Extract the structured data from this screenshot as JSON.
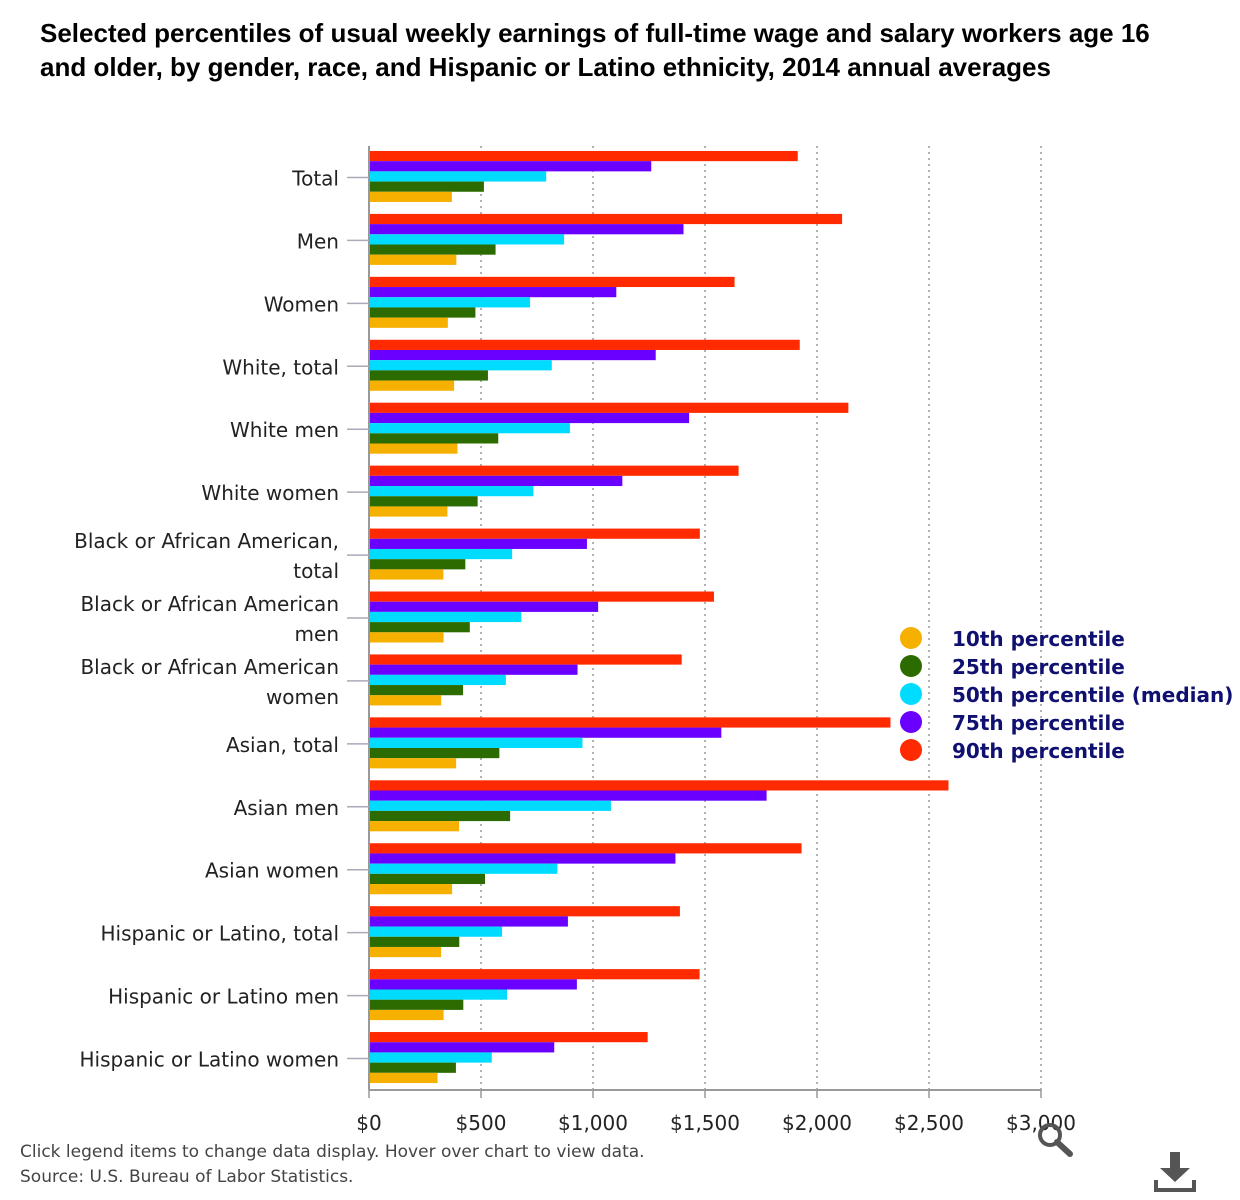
{
  "title": "Selected percentiles of usual weekly earnings of full-time wage and salary workers age 16 and older, by gender, race, and Hispanic or Latino ethnicity, 2014 annual averages",
  "footer": {
    "note": "Click legend items to change data display. Hover over chart to view data.",
    "source": "Source: U.S. Bureau of Labor Statistics."
  },
  "icons": {
    "zoom": "zoom-icon",
    "download": "download-icon"
  },
  "chart_data": {
    "type": "bar",
    "orientation": "horizontal",
    "title": "Selected percentiles of usual weekly earnings of full-time wage and salary workers age 16 and older, by gender, race, and Hispanic or Latino ethnicity, 2014 annual averages",
    "categories": [
      "Total",
      "Men",
      "Women",
      "White, total",
      "White men",
      "White women",
      "Black or African American, total",
      "Black or African American men",
      "Black or African American women",
      "Asian, total",
      "Asian men",
      "Asian women",
      "Hispanic or Latino, total",
      "Hispanic or Latino men",
      "Hispanic or Latino women"
    ],
    "series": [
      {
        "name": "10th percentile",
        "color": "#f5b000",
        "values": [
          370,
          390,
          352,
          380,
          395,
          350,
          332,
          333,
          322,
          389,
          402,
          371,
          322,
          333,
          306
        ]
      },
      {
        "name": "25th percentile",
        "color": "#2c6b00",
        "values": [
          513,
          565,
          475,
          531,
          577,
          485,
          430,
          450,
          420,
          582,
          630,
          518,
          403,
          421,
          388
        ]
      },
      {
        "name": "50th percentile (median)",
        "color": "#00dcff",
        "values": [
          791,
          871,
          719,
          816,
          897,
          734,
          639,
          680,
          611,
          953,
          1080,
          841,
          594,
          616,
          548
        ]
      },
      {
        "name": "75th percentile",
        "color": "#6a00ff",
        "values": [
          1260,
          1404,
          1104,
          1280,
          1429,
          1131,
          973,
          1023,
          931,
          1573,
          1775,
          1368,
          888,
          928,
          827
        ]
      },
      {
        "name": "90th percentile",
        "color": "#ff2a00",
        "values": [
          1914,
          2112,
          1632,
          1923,
          2140,
          1650,
          1477,
          1540,
          1396,
          2328,
          2587,
          1931,
          1388,
          1476,
          1244
        ]
      }
    ],
    "x_ticks": [
      "$0",
      "$500",
      "$1,000",
      "$1,500",
      "$2,000",
      "$2,500",
      "$3,000"
    ],
    "xlim": [
      0,
      3000
    ],
    "grid": true,
    "legend_position": "right"
  }
}
